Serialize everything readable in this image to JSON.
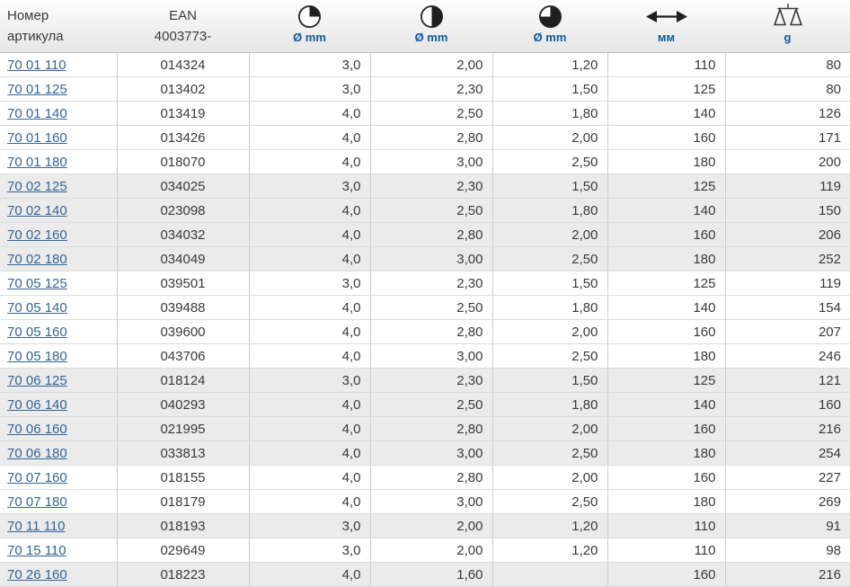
{
  "colors": {
    "link": "#336699",
    "header_label": "#0e5a9d",
    "row_shaded": "#ebebeb",
    "icon_dark": "#1f1f1f"
  },
  "table": {
    "columns": [
      {
        "id": "article",
        "line1": "Номер",
        "line2": "артикула",
        "icon": null
      },
      {
        "id": "ean",
        "line1": "EAN",
        "line2": "4003773-",
        "icon": null
      },
      {
        "id": "diameter1",
        "label": "Ø mm",
        "icon": "pie-quarter-icon"
      },
      {
        "id": "diameter2",
        "label": "Ø mm",
        "icon": "pie-half-icon"
      },
      {
        "id": "diameter3",
        "label": "Ø mm",
        "icon": "pie-three-quarter-icon"
      },
      {
        "id": "length",
        "label": "мм",
        "icon": "double-arrow-icon"
      },
      {
        "id": "weight",
        "label": "g",
        "icon": "scales-icon"
      }
    ],
    "rows": [
      {
        "article": "70 01 110",
        "ean": "014324",
        "d1": "3,0",
        "d2": "2,00",
        "d3": "1,20",
        "mm": "110",
        "g": "80"
      },
      {
        "article": "70 01 125",
        "ean": "013402",
        "d1": "3,0",
        "d2": "2,30",
        "d3": "1,50",
        "mm": "125",
        "g": "80"
      },
      {
        "article": "70 01 140",
        "ean": "013419",
        "d1": "4,0",
        "d2": "2,50",
        "d3": "1,80",
        "mm": "140",
        "g": "126"
      },
      {
        "article": "70 01 160",
        "ean": "013426",
        "d1": "4,0",
        "d2": "2,80",
        "d3": "2,00",
        "mm": "160",
        "g": "171"
      },
      {
        "article": "70 01 180",
        "ean": "018070",
        "d1": "4,0",
        "d2": "3,00",
        "d3": "2,50",
        "mm": "180",
        "g": "200"
      },
      {
        "article": "70 02 125",
        "ean": "034025",
        "d1": "3,0",
        "d2": "2,30",
        "d3": "1,50",
        "mm": "125",
        "g": "119"
      },
      {
        "article": "70 02 140",
        "ean": "023098",
        "d1": "4,0",
        "d2": "2,50",
        "d3": "1,80",
        "mm": "140",
        "g": "150"
      },
      {
        "article": "70 02 160",
        "ean": "034032",
        "d1": "4,0",
        "d2": "2,80",
        "d3": "2,00",
        "mm": "160",
        "g": "206"
      },
      {
        "article": "70 02 180",
        "ean": "034049",
        "d1": "4,0",
        "d2": "3,00",
        "d3": "2,50",
        "mm": "180",
        "g": "252"
      },
      {
        "article": "70 05 125",
        "ean": "039501",
        "d1": "3,0",
        "d2": "2,30",
        "d3": "1,50",
        "mm": "125",
        "g": "119"
      },
      {
        "article": "70 05 140",
        "ean": "039488",
        "d1": "4,0",
        "d2": "2,50",
        "d3": "1,80",
        "mm": "140",
        "g": "154"
      },
      {
        "article": "70 05 160",
        "ean": "039600",
        "d1": "4,0",
        "d2": "2,80",
        "d3": "2,00",
        "mm": "160",
        "g": "207"
      },
      {
        "article": "70 05 180",
        "ean": "043706",
        "d1": "4,0",
        "d2": "3,00",
        "d3": "2,50",
        "mm": "180",
        "g": "246"
      },
      {
        "article": "70 06 125",
        "ean": "018124",
        "d1": "3,0",
        "d2": "2,30",
        "d3": "1,50",
        "mm": "125",
        "g": "121"
      },
      {
        "article": "70 06 140",
        "ean": "040293",
        "d1": "4,0",
        "d2": "2,50",
        "d3": "1,80",
        "mm": "140",
        "g": "160"
      },
      {
        "article": "70 06 160",
        "ean": "021995",
        "d1": "4,0",
        "d2": "2,80",
        "d3": "2,00",
        "mm": "160",
        "g": "216"
      },
      {
        "article": "70 06 180",
        "ean": "033813",
        "d1": "4,0",
        "d2": "3,00",
        "d3": "2,50",
        "mm": "180",
        "g": "254"
      },
      {
        "article": "70 07 160",
        "ean": "018155",
        "d1": "4,0",
        "d2": "2,80",
        "d3": "2,00",
        "mm": "160",
        "g": "227"
      },
      {
        "article": "70 07 180",
        "ean": "018179",
        "d1": "4,0",
        "d2": "3,00",
        "d3": "2,50",
        "mm": "180",
        "g": "269"
      },
      {
        "article": "70 11 110",
        "ean": "018193",
        "d1": "3,0",
        "d2": "2,00",
        "d3": "1,20",
        "mm": "110",
        "g": "91"
      },
      {
        "article": "70 15 110",
        "ean": "029649",
        "d1": "3,0",
        "d2": "2,00",
        "d3": "1,20",
        "mm": "110",
        "g": "98"
      },
      {
        "article": "70 26 160",
        "ean": "018223",
        "d1": "4,0",
        "d2": "1,60",
        "d3": "",
        "mm": "160",
        "g": "216"
      }
    ]
  }
}
